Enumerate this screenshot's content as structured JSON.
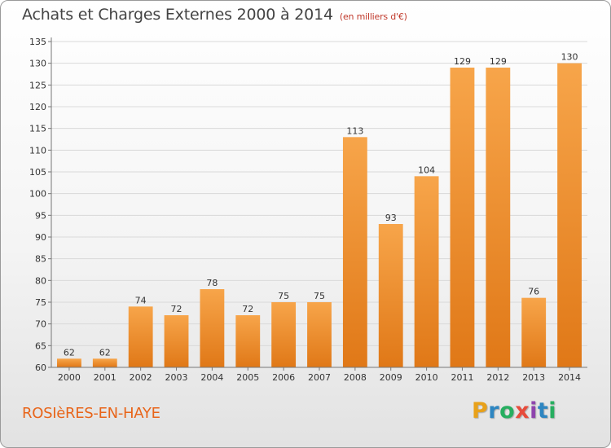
{
  "header": {
    "title": "Achats et Charges Externes 2000 à 2014",
    "unit": "(en milliers d'€)"
  },
  "footer": {
    "commune": "ROSIèRES-EN-HAYE",
    "logo_letters": [
      "P",
      "r",
      "o",
      "x",
      "i",
      "t",
      "i"
    ],
    "logo_colors": [
      "#e8a11a",
      "#2e86c1",
      "#27ae60",
      "#e74c3c",
      "#8e44ad",
      "#2e86c1",
      "#27ae60"
    ]
  },
  "colors": {
    "bar_light": "#f7a54a",
    "bar_dark": "#e07817",
    "grid": "#d9d9d9",
    "axis_text": "#333333",
    "title": "#444444",
    "subtitle": "#c0392b",
    "commune": "#e8651a"
  },
  "chart_data": {
    "type": "bar",
    "title": "Achats et Charges Externes 2000 à 2014",
    "categories": [
      "2000",
      "2001",
      "2002",
      "2003",
      "2004",
      "2005",
      "2006",
      "2007",
      "2008",
      "2009",
      "2010",
      "2011",
      "2012",
      "2013",
      "2014"
    ],
    "values": [
      62,
      62,
      74,
      72,
      78,
      72,
      75,
      75,
      113,
      93,
      104,
      129,
      129,
      76,
      130
    ],
    "ylim": [
      60,
      135
    ],
    "yticks": [
      60,
      65,
      70,
      75,
      80,
      85,
      90,
      95,
      100,
      105,
      110,
      115,
      120,
      125,
      130,
      135
    ],
    "grid": true,
    "xlabel": "",
    "ylabel": ""
  }
}
